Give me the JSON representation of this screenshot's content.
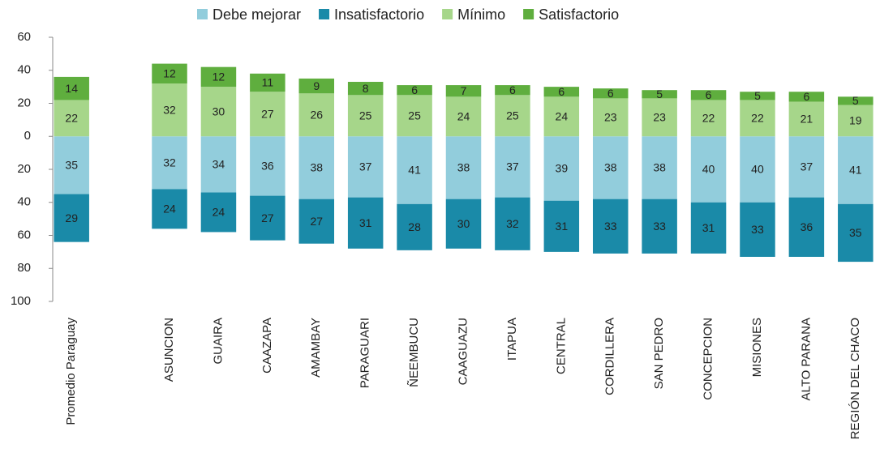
{
  "chart_data": {
    "type": "bar",
    "stacked": true,
    "categories": [
      "Promedio Paraguay",
      null,
      "ASUNCION",
      "GUAIRA",
      "CAAZAPA",
      "AMAMBAY",
      "PARAGUARI",
      "ÑEEMBUCU",
      "CAAGUAZU",
      "ITAPUA",
      "CENTRAL",
      "CORDILLERA",
      "SAN PEDRO",
      "CONCEPCION",
      "MISIONES",
      "ALTO PARANA",
      "REGIÓN DEL CHACO"
    ],
    "series": [
      {
        "name": "Debe mejorar",
        "color": "#92cddc",
        "values": [
          -35,
          null,
          -32,
          -34,
          -36,
          -38,
          -37,
          -41,
          -38,
          -37,
          -39,
          -38,
          -38,
          -40,
          -40,
          -37,
          -41
        ],
        "value_labels": [
          "35",
          null,
          "32",
          "34",
          "36",
          "38",
          "37",
          "41",
          "38",
          "37",
          "39",
          "38",
          "38",
          "40",
          "40",
          "37",
          "41"
        ]
      },
      {
        "name": "Insatisfactorio",
        "color": "#1a8aa8",
        "values": [
          -29,
          null,
          -24,
          -24,
          -27,
          -27,
          -31,
          -28,
          -30,
          -32,
          -31,
          -33,
          -33,
          -31,
          -33,
          -36,
          -35
        ],
        "value_labels": [
          "29",
          null,
          "24",
          "24",
          "27",
          "27",
          "31",
          "28",
          "30",
          "32",
          "31",
          "33",
          "33",
          "31",
          "33",
          "36",
          "35"
        ]
      },
      {
        "name": "Mínimo",
        "color": "#a6d68a",
        "values": [
          22,
          null,
          32,
          30,
          27,
          26,
          25,
          25,
          24,
          25,
          24,
          23,
          23,
          22,
          22,
          21,
          19
        ]
      },
      {
        "name": "Satisfactorio",
        "color": "#5fae3e",
        "values": [
          14,
          null,
          12,
          12,
          11,
          9,
          8,
          6,
          7,
          6,
          6,
          6,
          5,
          6,
          5,
          6,
          5
        ]
      }
    ],
    "ylim": [
      -100,
      60
    ],
    "yticks": [
      60,
      40,
      20,
      0,
      {
        "value": -20,
        "label": "20"
      },
      {
        "value": -40,
        "label": "40"
      },
      {
        "value": -60,
        "label": "60"
      },
      {
        "value": -80,
        "label": "80"
      },
      {
        "value": -100,
        "label": "100"
      }
    ],
    "legend": "top"
  }
}
